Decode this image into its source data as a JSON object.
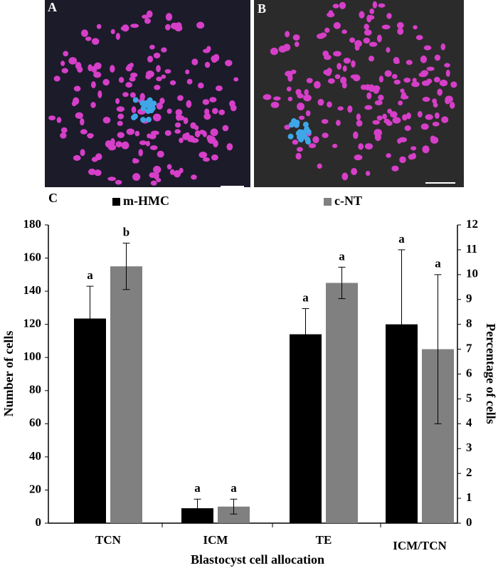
{
  "panels": [
    {
      "label": "A"
    },
    {
      "label": "B"
    }
  ],
  "chart_data": {
    "type": "bar",
    "panel_label": "C",
    "x_label": "Blastocyst cell allocation",
    "y_label": "Number of cells",
    "y2_label": "Percentage of cells",
    "categories": [
      "TCN",
      "ICM",
      "TE",
      "ICM/TCN"
    ],
    "category_axis": [
      "y",
      "y",
      "y",
      "y2"
    ],
    "series": [
      {
        "name": "m-HMC",
        "color": "#000000",
        "values": [
          123.5,
          9,
          114,
          8
        ],
        "errors": [
          19.5,
          5.5,
          15.5,
          3
        ],
        "letters": [
          "a",
          "a",
          "a",
          "a"
        ]
      },
      {
        "name": "c-NT",
        "color": "#808080",
        "values": [
          155,
          10,
          145,
          7
        ],
        "errors": [
          14,
          4.5,
          9.5,
          3
        ],
        "letters": [
          "b",
          "a",
          "a",
          "a"
        ]
      }
    ],
    "ylim": [
      0,
      180
    ],
    "yticks": [
      0,
      20,
      40,
      60,
      80,
      100,
      120,
      140,
      160,
      180
    ],
    "y2lim": [
      0,
      12
    ],
    "y2ticks": [
      0,
      1,
      2,
      3,
      4,
      5,
      6,
      7,
      8,
      9,
      10,
      11,
      12
    ]
  }
}
